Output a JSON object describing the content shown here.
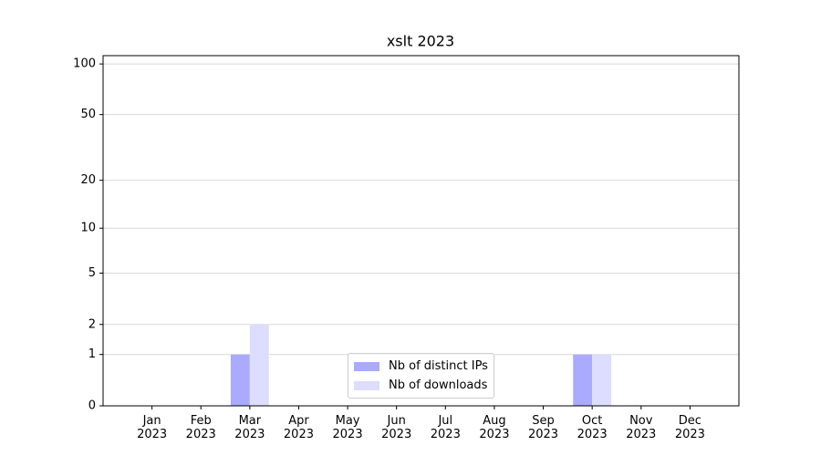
{
  "chart_data": {
    "type": "bar",
    "title": "xslt 2023",
    "categories": [
      "Jan 2023",
      "Feb 2023",
      "Mar 2023",
      "Apr 2023",
      "May 2023",
      "Jun 2023",
      "Jul 2023",
      "Aug 2023",
      "Sep 2023",
      "Oct 2023",
      "Nov 2023",
      "Dec 2023"
    ],
    "series": [
      {
        "name": "Nb of distinct IPs",
        "color": "#aaaaff",
        "values": [
          0,
          0,
          1,
          0,
          0,
          0,
          0,
          0,
          0,
          1,
          0,
          0
        ]
      },
      {
        "name": "Nb of downloads",
        "color": "#ddddff",
        "values": [
          0,
          0,
          2,
          0,
          0,
          0,
          0,
          0,
          0,
          1,
          0,
          0
        ]
      }
    ],
    "yscale": "log1p",
    "ylim": [
      0,
      112
    ],
    "yticks": [
      0,
      1,
      2,
      5,
      10,
      20,
      50,
      100
    ],
    "grid": true,
    "legend": "lower center"
  }
}
